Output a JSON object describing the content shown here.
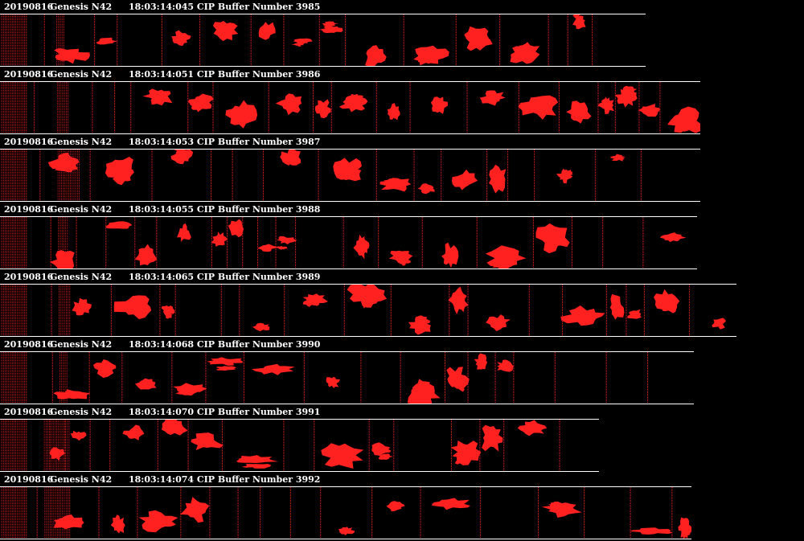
{
  "buffers": [
    {
      "date": "20190816",
      "probe": "Genesis N42",
      "info": "18:03:14:045 CIP Buffer Number 3985"
    },
    {
      "date": "20190816",
      "probe": "Genesis N42",
      "info": "18:03:14:051 CIP Buffer Number 3986"
    },
    {
      "date": "20190816",
      "probe": "Genesis N42",
      "info": "18:03:14:053 CIP Buffer Number 3987"
    },
    {
      "date": "20190816",
      "probe": "Genesis N42",
      "info": "18:03:14:055 CIP Buffer Number 3988"
    },
    {
      "date": "20190816",
      "probe": "Genesis N42",
      "info": "18:03:14:065 CIP Buffer Number 3989"
    },
    {
      "date": "20190816",
      "probe": "Genesis N42",
      "info": "18:03:14:068 CIP Buffer Number 3990"
    },
    {
      "date": "20190816",
      "probe": "Genesis N42",
      "info": "18:03:14:070 CIP Buffer Number 3991"
    },
    {
      "date": "20190816",
      "probe": "Genesis N42",
      "info": "18:03:14:074 CIP Buffer Number 3992"
    }
  ],
  "colors": {
    "particle": "#ff2020",
    "background": "#000000",
    "text": "#ffffff"
  }
}
